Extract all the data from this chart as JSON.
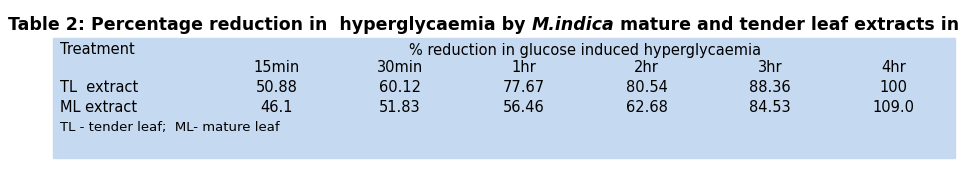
{
  "title_plain": "Table 2: Percentage reduction in  hyperglycaemia by ",
  "title_italic": "M.indica",
  "title_rest": " mature and tender leaf extracts in OGTT",
  "table_bg_color": "#c5d9f1",
  "header_row1_col0": "Treatment",
  "header_row1_span": "% reduction in glucose induced hyperglycaemia",
  "header_row2": [
    "15min",
    "30min",
    "1hr",
    "2hr",
    "3hr",
    "4hr"
  ],
  "data_rows": [
    [
      "TL  extract",
      "50.88",
      "60.12",
      "77.67",
      "80.54",
      "88.36",
      "100"
    ],
    [
      "ML extract",
      "46.1",
      "51.83",
      "56.46",
      "62.68",
      "84.53",
      "109.0"
    ]
  ],
  "footnote": "TL - tender leaf;  ML- mature leaf",
  "figure_bg": "#ffffff",
  "title_fontsize": 12.5,
  "cell_fontsize": 10.5,
  "footnote_fontsize": 9.5
}
